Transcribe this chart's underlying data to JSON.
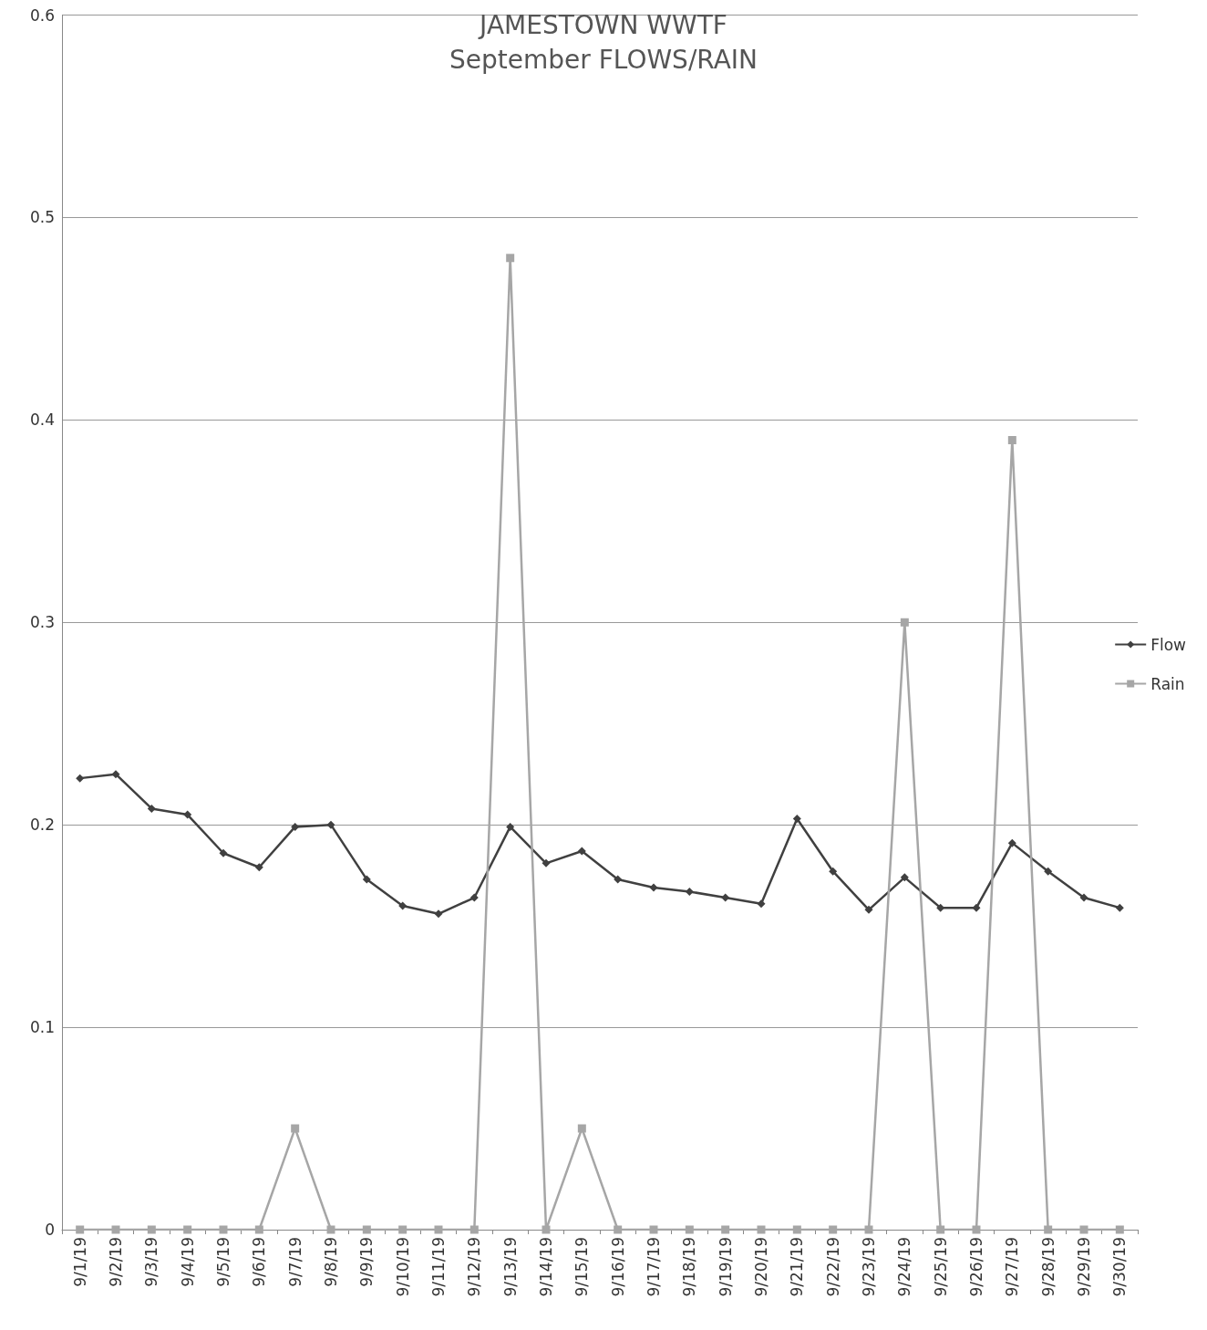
{
  "chart_data": {
    "type": "line",
    "title": "JAMESTOWN WWTF",
    "subtitle": "September FLOWS/RAIN",
    "categories": [
      "9/1/19",
      "9/2/19",
      "9/3/19",
      "9/4/19",
      "9/5/19",
      "9/6/19",
      "9/7/19",
      "9/8/19",
      "9/9/19",
      "9/10/19",
      "9/11/19",
      "9/12/19",
      "9/13/19",
      "9/14/19",
      "9/15/19",
      "9/16/19",
      "9/17/19",
      "9/18/19",
      "9/19/19",
      "9/20/19",
      "9/21/19",
      "9/22/19",
      "9/23/19",
      "9/24/19",
      "9/25/19",
      "9/26/19",
      "9/27/19",
      "9/28/19",
      "9/29/19",
      "9/30/19"
    ],
    "series": [
      {
        "name": "Flow",
        "color": "#404040",
        "marker": "diamond",
        "values": [
          0.223,
          0.225,
          0.208,
          0.205,
          0.186,
          0.179,
          0.199,
          0.2,
          0.173,
          0.16,
          0.156,
          0.164,
          0.199,
          0.181,
          0.187,
          0.173,
          0.169,
          0.167,
          0.164,
          0.161,
          0.203,
          0.177,
          0.158,
          0.174,
          0.159,
          0.159,
          0.191,
          0.177,
          0.164,
          0.159
        ]
      },
      {
        "name": "Rain",
        "color": "#a6a6a6",
        "marker": "square",
        "values": [
          0,
          0,
          0,
          0,
          0,
          0,
          0.05,
          0,
          0,
          0,
          0,
          0,
          0.48,
          0,
          0.05,
          0,
          0,
          0,
          0,
          0,
          0,
          0,
          0,
          0.3,
          0,
          0,
          0.39,
          0,
          0,
          0
        ]
      }
    ],
    "ylim": [
      0,
      0.6
    ],
    "yticks": [
      0,
      0.1,
      0.2,
      0.3,
      0.4,
      0.5,
      0.6
    ],
    "grid": "y",
    "legend": "right",
    "line_style": "solid"
  }
}
